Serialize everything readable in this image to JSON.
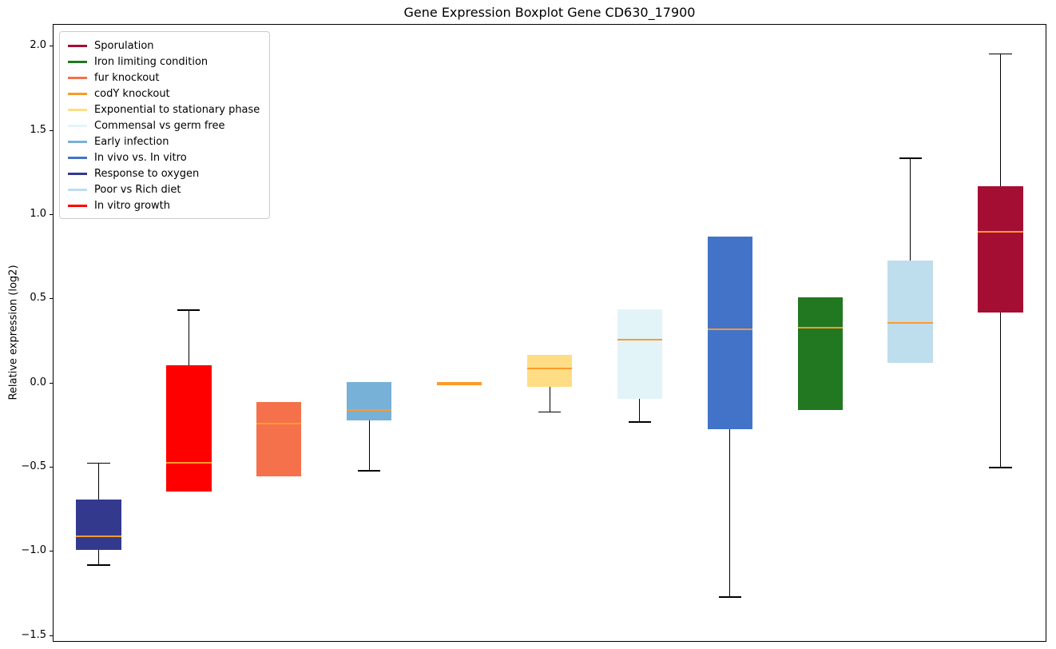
{
  "chart_data": {
    "type": "boxplot",
    "title": "Gene Expression Boxplot Gene CD630_17900",
    "xlabel": "",
    "ylabel": "Relative expression (log2)",
    "ylim": [
      -1.53,
      2.13
    ],
    "grid": false,
    "legend_position": "upper left",
    "median_color": "#ff9a2b",
    "whisker_color": "#000000",
    "yticks": [
      {
        "value": 2.0,
        "label": "2.0"
      },
      {
        "value": 1.5,
        "label": "1.5"
      },
      {
        "value": 1.0,
        "label": "1.0"
      },
      {
        "value": 0.5,
        "label": "0.5"
      },
      {
        "value": 0.0,
        "label": "0.0"
      },
      {
        "value": -0.5,
        "label": "−0.5"
      },
      {
        "value": -1.0,
        "label": "−1.0"
      },
      {
        "value": -1.5,
        "label": "−1.5"
      }
    ],
    "legend": [
      {
        "label": "Sporulation",
        "color": "#a50e33"
      },
      {
        "label": "Iron limiting condition",
        "color": "#217821"
      },
      {
        "label": "fur knockout",
        "color": "#f4714b"
      },
      {
        "label": "codY knockout",
        "color": "#f79b27"
      },
      {
        "label": "Exponential to stationary phase",
        "color": "#ffdd84"
      },
      {
        "label": "Commensal vs germ free",
        "color": "#e3f4f9"
      },
      {
        "label": "Early infection",
        "color": "#77b1d7"
      },
      {
        "label": "In vivo vs. In vitro",
        "color": "#4273c8"
      },
      {
        "label": "Response to oxygen",
        "color": "#333a8e"
      },
      {
        "label": "Poor vs Rich diet",
        "color": "#bedded"
      },
      {
        "label": "In vitro growth",
        "color": "#fe0000"
      }
    ],
    "groups": [
      {
        "name": "Response to oxygen",
        "color": "#333a8e",
        "whisker_low": -1.08,
        "q1": -0.99,
        "median": -0.91,
        "q3": -0.69,
        "whisker_high": -0.47
      },
      {
        "name": "In vitro growth",
        "color": "#fe0000",
        "whisker_low": -0.64,
        "q1": -0.64,
        "median": -0.47,
        "q3": 0.11,
        "whisker_high": 0.44
      },
      {
        "name": "fur knockout",
        "color": "#f4714b",
        "whisker_low": -0.55,
        "q1": -0.55,
        "median": -0.24,
        "q3": -0.11,
        "whisker_high": -0.11
      },
      {
        "name": "Early infection",
        "color": "#77b1d7",
        "whisker_low": -0.52,
        "q1": -0.22,
        "median": -0.16,
        "q3": 0.01,
        "whisker_high": 0.01
      },
      {
        "name": "codY knockout",
        "color": "#f79b27",
        "whisker_low": -0.01,
        "q1": -0.01,
        "median": 0.0,
        "q3": 0.01,
        "whisker_high": 0.01
      },
      {
        "name": "Exponential to stationary phase",
        "color": "#ffdd84",
        "whisker_low": -0.17,
        "q1": -0.02,
        "median": 0.09,
        "q3": 0.17,
        "whisker_high": 0.18
      },
      {
        "name": "Commensal vs germ free",
        "color": "#e3f4f9",
        "whisker_low": -0.23,
        "q1": -0.09,
        "median": 0.26,
        "q3": 0.44,
        "whisker_high": 0.45
      },
      {
        "name": "In vivo vs. In vitro",
        "color": "#4273c8",
        "whisker_low": -1.27,
        "q1": -0.27,
        "median": 0.32,
        "q3": 0.87,
        "whisker_high": 0.87
      },
      {
        "name": "Iron limiting condition",
        "color": "#217821",
        "whisker_low": -0.16,
        "q1": -0.16,
        "median": 0.33,
        "q3": 0.51,
        "whisker_high": 0.51
      },
      {
        "name": "Poor vs Rich diet",
        "color": "#bedded",
        "whisker_low": 0.11,
        "q1": 0.12,
        "median": 0.36,
        "q3": 0.73,
        "whisker_high": 1.34
      },
      {
        "name": "Sporulation",
        "color": "#a50e33",
        "whisker_low": -0.5,
        "q1": 0.42,
        "median": 0.9,
        "q3": 1.17,
        "whisker_high": 1.96
      }
    ]
  }
}
